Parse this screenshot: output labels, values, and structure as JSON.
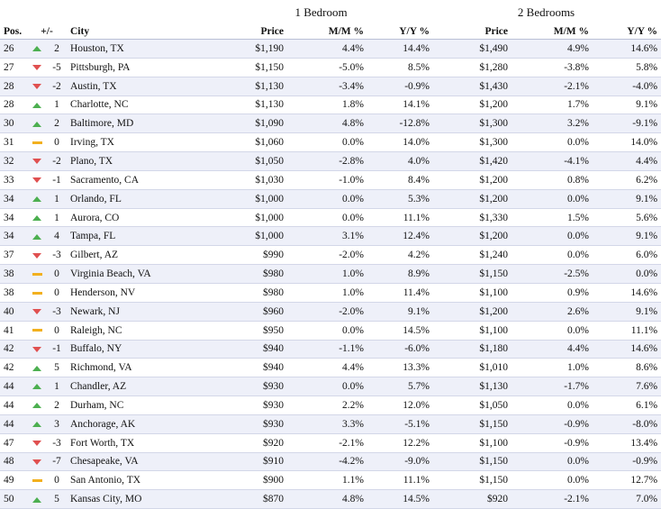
{
  "headers": {
    "group_1br": "1 Bedroom",
    "group_2br": "2 Bedrooms",
    "pos": "Pos.",
    "change": "+/-",
    "city": "City",
    "price_1br": "Price",
    "mm_1br": "M/M %",
    "yy_1br": "Y/Y %",
    "price_2br": "Price",
    "mm_2br": "M/M %",
    "yy_2br": "Y/Y %"
  },
  "trend_icons": {
    "up": "triangle-up-icon",
    "down": "triangle-down-icon",
    "same": "dash-icon"
  },
  "colors": {
    "up": "#4caf50",
    "down": "#e05050",
    "same": "#f2b01e",
    "stripe": "#eef0f9"
  },
  "rows": [
    {
      "pos": "26",
      "trend": "up",
      "change": "2",
      "city": "Houston, TX",
      "price1": "$1,190",
      "mm1": "4.4%",
      "yy1": "14.4%",
      "price2": "$1,490",
      "mm2": "4.9%",
      "yy2": "14.6%"
    },
    {
      "pos": "27",
      "trend": "down",
      "change": "-5",
      "city": "Pittsburgh, PA",
      "price1": "$1,150",
      "mm1": "-5.0%",
      "yy1": "8.5%",
      "price2": "$1,280",
      "mm2": "-3.8%",
      "yy2": "5.8%"
    },
    {
      "pos": "28",
      "trend": "down",
      "change": "-2",
      "city": "Austin, TX",
      "price1": "$1,130",
      "mm1": "-3.4%",
      "yy1": "-0.9%",
      "price2": "$1,430",
      "mm2": "-2.1%",
      "yy2": "-4.0%"
    },
    {
      "pos": "28",
      "trend": "up",
      "change": "1",
      "city": "Charlotte, NC",
      "price1": "$1,130",
      "mm1": "1.8%",
      "yy1": "14.1%",
      "price2": "$1,200",
      "mm2": "1.7%",
      "yy2": "9.1%"
    },
    {
      "pos": "30",
      "trend": "up",
      "change": "2",
      "city": "Baltimore, MD",
      "price1": "$1,090",
      "mm1": "4.8%",
      "yy1": "-12.8%",
      "price2": "$1,300",
      "mm2": "3.2%",
      "yy2": "-9.1%"
    },
    {
      "pos": "31",
      "trend": "same",
      "change": "0",
      "city": "Irving, TX",
      "price1": "$1,060",
      "mm1": "0.0%",
      "yy1": "14.0%",
      "price2": "$1,300",
      "mm2": "0.0%",
      "yy2": "14.0%"
    },
    {
      "pos": "32",
      "trend": "down",
      "change": "-2",
      "city": "Plano, TX",
      "price1": "$1,050",
      "mm1": "-2.8%",
      "yy1": "4.0%",
      "price2": "$1,420",
      "mm2": "-4.1%",
      "yy2": "4.4%"
    },
    {
      "pos": "33",
      "trend": "down",
      "change": "-1",
      "city": "Sacramento, CA",
      "price1": "$1,030",
      "mm1": "-1.0%",
      "yy1": "8.4%",
      "price2": "$1,200",
      "mm2": "0.8%",
      "yy2": "6.2%"
    },
    {
      "pos": "34",
      "trend": "up",
      "change": "1",
      "city": "Orlando, FL",
      "price1": "$1,000",
      "mm1": "0.0%",
      "yy1": "5.3%",
      "price2": "$1,200",
      "mm2": "0.0%",
      "yy2": "9.1%"
    },
    {
      "pos": "34",
      "trend": "up",
      "change": "1",
      "city": "Aurora, CO",
      "price1": "$1,000",
      "mm1": "0.0%",
      "yy1": "11.1%",
      "price2": "$1,330",
      "mm2": "1.5%",
      "yy2": "5.6%"
    },
    {
      "pos": "34",
      "trend": "up",
      "change": "4",
      "city": "Tampa, FL",
      "price1": "$1,000",
      "mm1": "3.1%",
      "yy1": "12.4%",
      "price2": "$1,200",
      "mm2": "0.0%",
      "yy2": "9.1%"
    },
    {
      "pos": "37",
      "trend": "down",
      "change": "-3",
      "city": "Gilbert, AZ",
      "price1": "$990",
      "mm1": "-2.0%",
      "yy1": "4.2%",
      "price2": "$1,240",
      "mm2": "0.0%",
      "yy2": "6.0%"
    },
    {
      "pos": "38",
      "trend": "same",
      "change": "0",
      "city": "Virginia Beach, VA",
      "price1": "$980",
      "mm1": "1.0%",
      "yy1": "8.9%",
      "price2": "$1,150",
      "mm2": "-2.5%",
      "yy2": "0.0%"
    },
    {
      "pos": "38",
      "trend": "same",
      "change": "0",
      "city": "Henderson, NV",
      "price1": "$980",
      "mm1": "1.0%",
      "yy1": "11.4%",
      "price2": "$1,100",
      "mm2": "0.9%",
      "yy2": "14.6%"
    },
    {
      "pos": "40",
      "trend": "down",
      "change": "-3",
      "city": "Newark, NJ",
      "price1": "$960",
      "mm1": "-2.0%",
      "yy1": "9.1%",
      "price2": "$1,200",
      "mm2": "2.6%",
      "yy2": "9.1%"
    },
    {
      "pos": "41",
      "trend": "same",
      "change": "0",
      "city": "Raleigh, NC",
      "price1": "$950",
      "mm1": "0.0%",
      "yy1": "14.5%",
      "price2": "$1,100",
      "mm2": "0.0%",
      "yy2": "11.1%"
    },
    {
      "pos": "42",
      "trend": "down",
      "change": "-1",
      "city": "Buffalo, NY",
      "price1": "$940",
      "mm1": "-1.1%",
      "yy1": "-6.0%",
      "price2": "$1,180",
      "mm2": "4.4%",
      "yy2": "14.6%"
    },
    {
      "pos": "42",
      "trend": "up",
      "change": "5",
      "city": "Richmond, VA",
      "price1": "$940",
      "mm1": "4.4%",
      "yy1": "13.3%",
      "price2": "$1,010",
      "mm2": "1.0%",
      "yy2": "8.6%"
    },
    {
      "pos": "44",
      "trend": "up",
      "change": "1",
      "city": "Chandler, AZ",
      "price1": "$930",
      "mm1": "0.0%",
      "yy1": "5.7%",
      "price2": "$1,130",
      "mm2": "-1.7%",
      "yy2": "7.6%"
    },
    {
      "pos": "44",
      "trend": "up",
      "change": "2",
      "city": "Durham, NC",
      "price1": "$930",
      "mm1": "2.2%",
      "yy1": "12.0%",
      "price2": "$1,050",
      "mm2": "0.0%",
      "yy2": "6.1%"
    },
    {
      "pos": "44",
      "trend": "up",
      "change": "3",
      "city": "Anchorage, AK",
      "price1": "$930",
      "mm1": "3.3%",
      "yy1": "-5.1%",
      "price2": "$1,150",
      "mm2": "-0.9%",
      "yy2": "-8.0%"
    },
    {
      "pos": "47",
      "trend": "down",
      "change": "-3",
      "city": "Fort Worth, TX",
      "price1": "$920",
      "mm1": "-2.1%",
      "yy1": "12.2%",
      "price2": "$1,100",
      "mm2": "-0.9%",
      "yy2": "13.4%"
    },
    {
      "pos": "48",
      "trend": "down",
      "change": "-7",
      "city": "Chesapeake, VA",
      "price1": "$910",
      "mm1": "-4.2%",
      "yy1": "-9.0%",
      "price2": "$1,150",
      "mm2": "0.0%",
      "yy2": "-0.9%"
    },
    {
      "pos": "49",
      "trend": "same",
      "change": "0",
      "city": "San Antonio, TX",
      "price1": "$900",
      "mm1": "1.1%",
      "yy1": "11.1%",
      "price2": "$1,150",
      "mm2": "0.0%",
      "yy2": "12.7%"
    },
    {
      "pos": "50",
      "trend": "up",
      "change": "5",
      "city": "Kansas City, MO",
      "price1": "$870",
      "mm1": "4.8%",
      "yy1": "14.5%",
      "price2": "$920",
      "mm2": "-2.1%",
      "yy2": "7.0%"
    }
  ]
}
